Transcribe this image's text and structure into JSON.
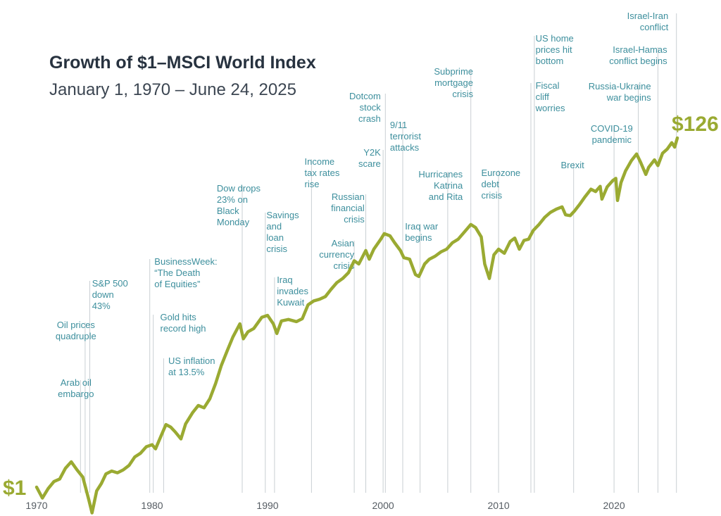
{
  "chart_data": {
    "type": "line",
    "title": "Growth of $1–MSCI World Index",
    "subtitle": "January 1, 1970 – June 24, 2025",
    "start_label": "$1",
    "end_label": "$126",
    "x_ticks": [
      "1970",
      "1980",
      "1990",
      "2000",
      "2010",
      "2020"
    ],
    "y_scale": "log",
    "ylim": [
      0.7,
      160
    ],
    "series": [
      {
        "name": "MSCI World Index",
        "color": "#9aaa32",
        "points": [
          [
            1970.0,
            1.0
          ],
          [
            1970.5,
            0.86
          ],
          [
            1971.0,
            0.98
          ],
          [
            1971.5,
            1.08
          ],
          [
            1972.0,
            1.12
          ],
          [
            1972.5,
            1.3
          ],
          [
            1973.0,
            1.42
          ],
          [
            1973.5,
            1.27
          ],
          [
            1974.0,
            1.15
          ],
          [
            1974.5,
            0.85
          ],
          [
            1974.8,
            0.7
          ],
          [
            1975.2,
            0.95
          ],
          [
            1975.6,
            1.05
          ],
          [
            1976.0,
            1.2
          ],
          [
            1976.5,
            1.25
          ],
          [
            1977.0,
            1.22
          ],
          [
            1977.5,
            1.27
          ],
          [
            1978.0,
            1.35
          ],
          [
            1978.5,
            1.52
          ],
          [
            1979.0,
            1.6
          ],
          [
            1979.5,
            1.75
          ],
          [
            1980.0,
            1.8
          ],
          [
            1980.3,
            1.7
          ],
          [
            1980.8,
            2.05
          ],
          [
            1981.2,
            2.38
          ],
          [
            1981.6,
            2.3
          ],
          [
            1982.0,
            2.15
          ],
          [
            1982.5,
            1.95
          ],
          [
            1982.9,
            2.4
          ],
          [
            1983.5,
            2.8
          ],
          [
            1984.0,
            3.1
          ],
          [
            1984.5,
            3.0
          ],
          [
            1985.0,
            3.4
          ],
          [
            1985.5,
            4.2
          ],
          [
            1986.0,
            5.4
          ],
          [
            1986.5,
            6.6
          ],
          [
            1987.0,
            8.0
          ],
          [
            1987.6,
            9.6
          ],
          [
            1987.9,
            7.8
          ],
          [
            1988.3,
            8.6
          ],
          [
            1988.8,
            9.0
          ],
          [
            1989.5,
            10.5
          ],
          [
            1990.0,
            10.8
          ],
          [
            1990.5,
            9.6
          ],
          [
            1990.8,
            8.4
          ],
          [
            1991.2,
            10.0
          ],
          [
            1991.8,
            10.2
          ],
          [
            1992.5,
            9.9
          ],
          [
            1993.0,
            10.3
          ],
          [
            1993.5,
            12.5
          ],
          [
            1994.0,
            13.2
          ],
          [
            1994.5,
            13.5
          ],
          [
            1995.0,
            14.0
          ],
          [
            1995.5,
            15.5
          ],
          [
            1996.0,
            17.0
          ],
          [
            1996.5,
            18.0
          ],
          [
            1997.0,
            19.5
          ],
          [
            1997.5,
            23.0
          ],
          [
            1997.9,
            22.0
          ],
          [
            1998.5,
            26.5
          ],
          [
            1998.8,
            23.5
          ],
          [
            1999.2,
            27.0
          ],
          [
            1999.8,
            31.0
          ],
          [
            2000.1,
            33.5
          ],
          [
            2000.6,
            32.5
          ],
          [
            2001.0,
            29.5
          ],
          [
            2001.5,
            26.5
          ],
          [
            2001.8,
            24.0
          ],
          [
            2002.3,
            23.5
          ],
          [
            2002.8,
            19.0
          ],
          [
            2003.1,
            18.5
          ],
          [
            2003.6,
            22.0
          ],
          [
            2004.0,
            23.5
          ],
          [
            2004.5,
            24.5
          ],
          [
            2005.0,
            26.0
          ],
          [
            2005.5,
            27.0
          ],
          [
            2006.0,
            29.5
          ],
          [
            2006.5,
            31.0
          ],
          [
            2007.0,
            34.0
          ],
          [
            2007.6,
            38.0
          ],
          [
            2008.0,
            36.5
          ],
          [
            2008.5,
            32.0
          ],
          [
            2008.8,
            22.0
          ],
          [
            2009.2,
            18.0
          ],
          [
            2009.6,
            25.0
          ],
          [
            2010.0,
            27.0
          ],
          [
            2010.5,
            25.5
          ],
          [
            2011.0,
            30.0
          ],
          [
            2011.4,
            31.5
          ],
          [
            2011.8,
            27.0
          ],
          [
            2012.2,
            30.5
          ],
          [
            2012.6,
            31.0
          ],
          [
            2013.0,
            35.0
          ],
          [
            2013.5,
            38.0
          ],
          [
            2014.0,
            42.0
          ],
          [
            2014.5,
            45.0
          ],
          [
            2015.0,
            47.0
          ],
          [
            2015.5,
            48.5
          ],
          [
            2015.8,
            43.5
          ],
          [
            2016.2,
            43.0
          ],
          [
            2016.6,
            46.0
          ],
          [
            2017.0,
            50.0
          ],
          [
            2017.5,
            56.0
          ],
          [
            2018.0,
            62.0
          ],
          [
            2018.4,
            60.0
          ],
          [
            2018.8,
            64.5
          ],
          [
            2018.95,
            54.0
          ],
          [
            2019.4,
            64.0
          ],
          [
            2019.9,
            70.0
          ],
          [
            2020.15,
            72.0
          ],
          [
            2020.3,
            53.0
          ],
          [
            2020.6,
            68.0
          ],
          [
            2021.0,
            80.0
          ],
          [
            2021.5,
            92.0
          ],
          [
            2021.95,
            101.0
          ],
          [
            2022.3,
            90.0
          ],
          [
            2022.75,
            76.0
          ],
          [
            2023.0,
            84.0
          ],
          [
            2023.5,
            93.0
          ],
          [
            2023.8,
            86.0
          ],
          [
            2024.2,
            102.0
          ],
          [
            2024.6,
            108.0
          ],
          [
            2025.0,
            118.0
          ],
          [
            2025.25,
            111.0
          ],
          [
            2025.48,
            126.0
          ]
        ]
      }
    ],
    "annotations": [
      {
        "year": 1973.8,
        "lines": [
          "Arab oil",
          "embargo"
        ],
        "anchor": "middle",
        "label_year": 1973.4,
        "top_line": 1
      },
      {
        "year": 1974.2,
        "lines": [
          "Oil prices",
          "quadruple"
        ],
        "anchor": "middle",
        "label_year": 1973.4,
        "top_line": 0
      },
      {
        "year": 1974.6,
        "lines": [
          "S&P 500",
          "down",
          "43%"
        ],
        "anchor": "start",
        "label_year": 1974.8,
        "top_line": 0
      },
      {
        "year": 1979.8,
        "lines": [
          "BusinessWeek:",
          "“The Death",
          "of Equities”"
        ],
        "anchor": "start",
        "label_year": 1980.2,
        "top_line": 0
      },
      {
        "year": 1980.1,
        "lines": [
          "Gold hits",
          "record high"
        ],
        "anchor": "start",
        "label_year": 1980.7,
        "top_line": 0
      },
      {
        "year": 1981.0,
        "lines": [
          "US inflation",
          "at 13.5%"
        ],
        "anchor": "start",
        "label_year": 1981.4,
        "top_line": 0
      },
      {
        "year": 1987.8,
        "lines": [
          "Dow drops",
          "23% on",
          "Black",
          "Monday"
        ],
        "anchor": "start",
        "label_year": 1985.6,
        "top_line": 0
      },
      {
        "year": 1989.8,
        "lines": [
          "Savings",
          "and",
          "loan",
          "crisis"
        ],
        "anchor": "start",
        "label_year": 1989.9,
        "top_line": 0
      },
      {
        "year": 1990.6,
        "lines": [
          "Iraq",
          "invades",
          "Kuwait"
        ],
        "anchor": "start",
        "label_year": 1990.8,
        "top_line": 0
      },
      {
        "year": 1993.8,
        "lines": [
          "Income",
          "tax rates",
          "rise"
        ],
        "anchor": "start",
        "label_year": 1993.2,
        "top_line": 0
      },
      {
        "year": 1997.5,
        "lines": [
          "Asian",
          "currency",
          "crisis"
        ],
        "anchor": "end",
        "label_year": 1997.5,
        "top_line": 0
      },
      {
        "year": 1998.5,
        "lines": [
          "Russian",
          "financial",
          "crisis"
        ],
        "anchor": "end",
        "label_year": 1998.4,
        "top_line": 0
      },
      {
        "year": 2000.0,
        "lines": [
          "Y2K",
          "scare"
        ],
        "anchor": "end",
        "label_year": 1999.8,
        "top_line": 0
      },
      {
        "year": 2000.2,
        "lines": [
          "Dotcom",
          "stock",
          "crash"
        ],
        "anchor": "end",
        "label_year": 1999.8,
        "top_line": 0
      },
      {
        "year": 2001.7,
        "lines": [
          "9/11",
          "terrorist",
          "attacks"
        ],
        "anchor": "start",
        "label_year": 2000.6,
        "top_line": 0
      },
      {
        "year": 2003.2,
        "lines": [
          "Iraq war",
          "begins"
        ],
        "anchor": "start",
        "label_year": 2001.9,
        "top_line": 0
      },
      {
        "year": 2005.6,
        "lines": [
          "Hurricanes",
          "Katrina",
          "and Rita"
        ],
        "anchor": "end",
        "label_year": 2006.9,
        "top_line": 0
      },
      {
        "year": 2007.6,
        "lines": [
          "Subprime",
          "mortgage",
          "crisis"
        ],
        "anchor": "end",
        "label_year": 2007.8,
        "top_line": 0
      },
      {
        "year": 2010.0,
        "lines": [
          "Eurozone",
          "debt",
          "crisis"
        ],
        "anchor": "start",
        "label_year": 2008.5,
        "top_line": 0
      },
      {
        "year": 2012.8,
        "lines": [
          "Fiscal",
          "cliff",
          "worries"
        ],
        "anchor": "start",
        "label_year": 2013.2,
        "top_line": 0
      },
      {
        "year": 2013.1,
        "lines": [
          "US home",
          "prices hit",
          "bottom"
        ],
        "anchor": "start",
        "label_year": 2013.2,
        "top_line": 0
      },
      {
        "year": 2016.5,
        "lines": [
          "Brexit"
        ],
        "anchor": "middle",
        "label_year": 2016.4,
        "top_line": 0
      },
      {
        "year": 2020.0,
        "lines": [
          "COVID-19",
          "pandemic"
        ],
        "anchor": "middle",
        "label_year": 2019.8,
        "top_line": 0
      },
      {
        "year": 2022.1,
        "lines": [
          "Russia-Ukraine",
          "war begins"
        ],
        "anchor": "end",
        "label_year": 2023.2,
        "top_line": 0
      },
      {
        "year": 2023.8,
        "lines": [
          "Israel-Hamas",
          "conflict begins"
        ],
        "anchor": "end",
        "label_year": 2024.6,
        "top_line": 0
      },
      {
        "year": 2025.4,
        "lines": [
          "Israel-Iran",
          "conflict"
        ],
        "anchor": "end",
        "label_year": 2024.7,
        "top_line": 0
      }
    ]
  }
}
